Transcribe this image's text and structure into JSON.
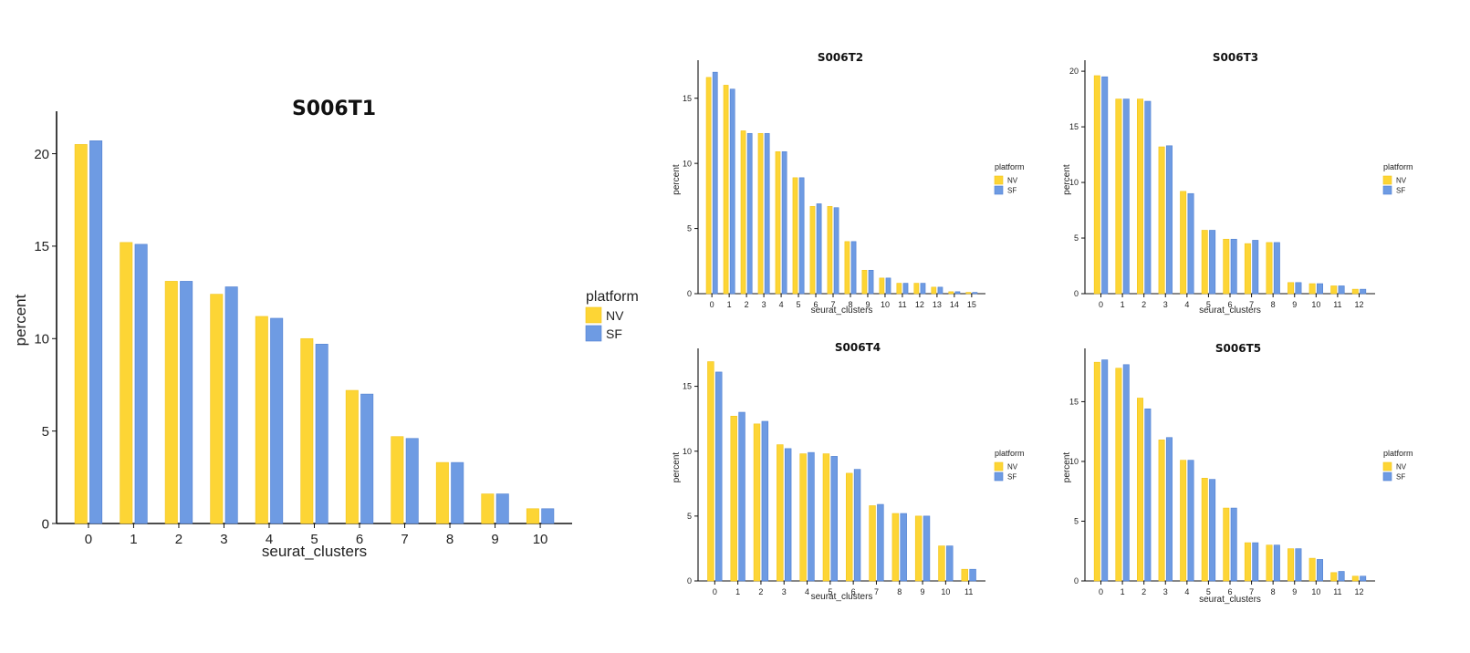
{
  "chart_data": [
    {
      "type": "bar",
      "title": "S006T1",
      "xlabel": "seurat_clusters",
      "ylabel": "percent",
      "categories": [
        "0",
        "1",
        "2",
        "3",
        "4",
        "5",
        "6",
        "7",
        "8",
        "9",
        "10"
      ],
      "ylim": [
        0,
        22
      ],
      "yticks": [
        0,
        5,
        10,
        15,
        20
      ],
      "series": [
        {
          "name": "NV",
          "values": [
            20.5,
            15.2,
            13.1,
            12.4,
            11.2,
            10.0,
            7.2,
            4.7,
            3.3,
            1.6,
            0.8
          ]
        },
        {
          "name": "SF",
          "values": [
            20.7,
            15.1,
            13.1,
            12.8,
            11.1,
            9.7,
            7.0,
            4.6,
            3.3,
            1.6,
            0.8
          ]
        }
      ],
      "legend": {
        "title": "platform",
        "position": "right"
      },
      "grid": false
    },
    {
      "type": "bar",
      "title": "S006T2",
      "xlabel": "seurat_clusters",
      "ylabel": "percent",
      "categories": [
        "0",
        "1",
        "2",
        "3",
        "4",
        "5",
        "6",
        "7",
        "8",
        "9",
        "10",
        "11",
        "12",
        "13",
        "14",
        "15"
      ],
      "ylim": [
        0,
        17.5
      ],
      "yticks": [
        0,
        5,
        10,
        15
      ],
      "series": [
        {
          "name": "NV",
          "values": [
            16.6,
            16.0,
            12.5,
            12.3,
            10.9,
            8.9,
            6.7,
            6.7,
            4.0,
            1.8,
            1.2,
            0.8,
            0.8,
            0.5,
            0.15,
            0.1
          ]
        },
        {
          "name": "SF",
          "values": [
            17.0,
            15.7,
            12.3,
            12.3,
            10.9,
            8.9,
            6.9,
            6.6,
            4.0,
            1.8,
            1.2,
            0.8,
            0.8,
            0.5,
            0.15,
            0.1
          ]
        }
      ],
      "legend": {
        "title": "platform",
        "position": "right"
      },
      "grid": false
    },
    {
      "type": "bar",
      "title": "S006T3",
      "xlabel": "seurat_clusters",
      "ylabel": "percent",
      "categories": [
        "0",
        "1",
        "2",
        "3",
        "4",
        "5",
        "6",
        "7",
        "8",
        "9",
        "10",
        "11",
        "12"
      ],
      "ylim": [
        0,
        20.5
      ],
      "yticks": [
        0,
        5,
        10,
        15,
        20
      ],
      "series": [
        {
          "name": "NV",
          "values": [
            19.6,
            17.5,
            17.5,
            13.2,
            9.2,
            5.7,
            4.9,
            4.5,
            4.6,
            1.0,
            0.9,
            0.7,
            0.4
          ]
        },
        {
          "name": "SF",
          "values": [
            19.5,
            17.5,
            17.3,
            13.3,
            9.0,
            5.7,
            4.9,
            4.8,
            4.6,
            1.0,
            0.9,
            0.7,
            0.4
          ]
        }
      ],
      "legend": {
        "title": "platform",
        "position": "right"
      },
      "grid": false
    },
    {
      "type": "bar",
      "title": "S006T4",
      "xlabel": "seurat_clusters",
      "ylabel": "percent",
      "categories": [
        "0",
        "1",
        "2",
        "3",
        "4",
        "5",
        "6",
        "7",
        "8",
        "9",
        "10",
        "11"
      ],
      "ylim": [
        0,
        17.5
      ],
      "yticks": [
        0,
        5,
        10,
        15
      ],
      "series": [
        {
          "name": "NV",
          "values": [
            16.9,
            12.7,
            12.1,
            10.5,
            9.8,
            9.8,
            8.3,
            5.8,
            5.2,
            5.0,
            2.7,
            0.9
          ]
        },
        {
          "name": "SF",
          "values": [
            16.1,
            13.0,
            12.3,
            10.2,
            9.9,
            9.6,
            8.6,
            5.9,
            5.2,
            5.0,
            2.7,
            0.9
          ]
        }
      ],
      "legend": {
        "title": "platform",
        "position": "right"
      },
      "grid": false
    },
    {
      "type": "bar",
      "title": "S006T5",
      "xlabel": "seurat_clusters",
      "ylabel": "percent",
      "categories": [
        "0",
        "1",
        "2",
        "3",
        "4",
        "5",
        "6",
        "7",
        "8",
        "9",
        "10",
        "11",
        "12"
      ],
      "ylim": [
        0,
        19.0
      ],
      "yticks": [
        0,
        5,
        10,
        15
      ],
      "series": [
        {
          "name": "NV",
          "values": [
            18.3,
            17.8,
            15.3,
            11.8,
            10.1,
            8.6,
            6.1,
            3.2,
            3.0,
            2.7,
            1.9,
            0.7,
            0.4
          ]
        },
        {
          "name": "SF",
          "values": [
            18.5,
            18.1,
            14.4,
            12.0,
            10.1,
            8.5,
            6.1,
            3.2,
            3.0,
            2.7,
            1.8,
            0.8,
            0.4
          ]
        }
      ],
      "legend": {
        "title": "platform",
        "position": "right"
      },
      "grid": false
    }
  ],
  "colors": {
    "NV": "#FDD535",
    "NV_edge": "#F2C418",
    "SF": "#6E9BE3",
    "SF_edge": "#4F7FD0",
    "axis": "#111111"
  }
}
